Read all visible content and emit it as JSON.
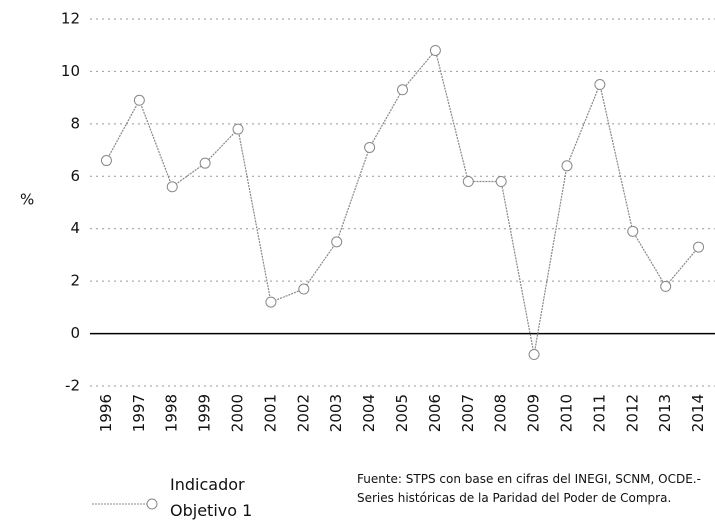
{
  "chart_data": {
    "type": "line",
    "y_label": "%",
    "categories": [
      "1996",
      "1997",
      "1998",
      "1999",
      "2000",
      "2001",
      "2002",
      "2003",
      "2004",
      "2005",
      "2006",
      "2007",
      "2008",
      "2009",
      "2010",
      "2011",
      "2012",
      "2013",
      "2014"
    ],
    "series": [
      {
        "name": "Indicador Objetivo 1",
        "color": "#888888",
        "values": [
          6.6,
          8.9,
          5.6,
          6.5,
          7.8,
          1.2,
          1.7,
          3.5,
          7.1,
          9.3,
          10.8,
          5.8,
          5.8,
          -0.8,
          6.4,
          9.5,
          3.9,
          1.8,
          3.3
        ]
      }
    ],
    "ylim": [
      -2,
      12
    ],
    "yticks": [
      -2,
      0,
      2,
      4,
      6,
      8,
      10,
      12
    ],
    "grid": true,
    "source": "Fuente: STPS con base en cifras del INEGI, SCNM, OCDE.- Series históricas de la Paridad del Poder de Compra."
  }
}
